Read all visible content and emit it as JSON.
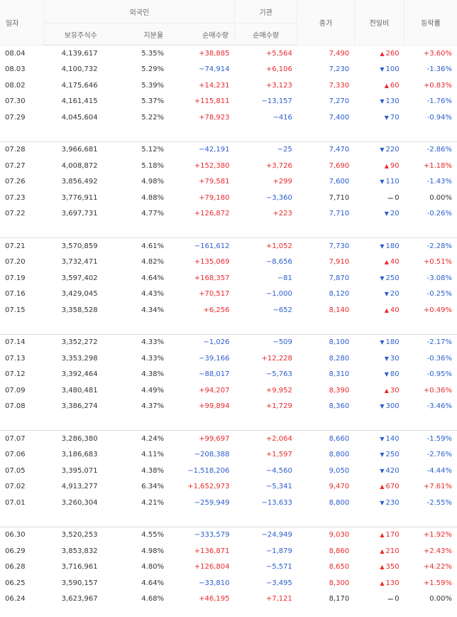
{
  "headers": {
    "date": "일자",
    "foreign": "외국인",
    "institution": "기관",
    "holdings": "보유주식수",
    "ratio": "지분율",
    "foreign_net": "순매수량",
    "inst_net": "순매수량",
    "close": "종가",
    "change": "전일비",
    "rate": "등락률"
  },
  "groups": [
    [
      {
        "date": "08.04",
        "holdings": "4,139,617",
        "ratio": "5.35%",
        "fnet": "+38,885",
        "inet": "+5,564",
        "close": "7,490",
        "dir": "up",
        "change": "260",
        "rate": "+3.60%"
      },
      {
        "date": "08.03",
        "holdings": "4,100,732",
        "ratio": "5.29%",
        "fnet": "−74,914",
        "inet": "+6,106",
        "close": "7,230",
        "dir": "down",
        "change": "100",
        "rate": "-1.36%"
      },
      {
        "date": "08.02",
        "holdings": "4,175,646",
        "ratio": "5.39%",
        "fnet": "+14,231",
        "inet": "+3,123",
        "close": "7,330",
        "dir": "up",
        "change": "60",
        "rate": "+0.83%"
      },
      {
        "date": "07.30",
        "holdings": "4,161,415",
        "ratio": "5.37%",
        "fnet": "+115,811",
        "inet": "−13,157",
        "close": "7,270",
        "dir": "down",
        "change": "130",
        "rate": "-1.76%"
      },
      {
        "date": "07.29",
        "holdings": "4,045,604",
        "ratio": "5.22%",
        "fnet": "+78,923",
        "inet": "−416",
        "close": "7,400",
        "dir": "down",
        "change": "70",
        "rate": "-0.94%"
      }
    ],
    [
      {
        "date": "07.28",
        "holdings": "3,966,681",
        "ratio": "5.12%",
        "fnet": "−42,191",
        "inet": "−25",
        "close": "7,470",
        "dir": "down",
        "change": "220",
        "rate": "-2.86%"
      },
      {
        "date": "07.27",
        "holdings": "4,008,872",
        "ratio": "5.18%",
        "fnet": "+152,380",
        "inet": "+3,726",
        "close": "7,690",
        "dir": "up",
        "change": "90",
        "rate": "+1.18%"
      },
      {
        "date": "07.26",
        "holdings": "3,856,492",
        "ratio": "4.98%",
        "fnet": "+79,581",
        "inet": "+299",
        "close": "7,600",
        "dir": "down",
        "change": "110",
        "rate": "-1.43%"
      },
      {
        "date": "07.23",
        "holdings": "3,776,911",
        "ratio": "4.88%",
        "fnet": "+79,180",
        "inet": "−3,360",
        "close": "7,710",
        "dir": "flat",
        "change": "0",
        "rate": "0.00%"
      },
      {
        "date": "07.22",
        "holdings": "3,697,731",
        "ratio": "4.77%",
        "fnet": "+126,872",
        "inet": "+223",
        "close": "7,710",
        "dir": "down",
        "change": "20",
        "rate": "-0.26%"
      }
    ],
    [
      {
        "date": "07.21",
        "holdings": "3,570,859",
        "ratio": "4.61%",
        "fnet": "−161,612",
        "inet": "+1,052",
        "close": "7,730",
        "dir": "down",
        "change": "180",
        "rate": "-2.28%"
      },
      {
        "date": "07.20",
        "holdings": "3,732,471",
        "ratio": "4.82%",
        "fnet": "+135,069",
        "inet": "−8,656",
        "close": "7,910",
        "dir": "up",
        "change": "40",
        "rate": "+0.51%"
      },
      {
        "date": "07.19",
        "holdings": "3,597,402",
        "ratio": "4.64%",
        "fnet": "+168,357",
        "inet": "−81",
        "close": "7,870",
        "dir": "down",
        "change": "250",
        "rate": "-3.08%"
      },
      {
        "date": "07.16",
        "holdings": "3,429,045",
        "ratio": "4.43%",
        "fnet": "+70,517",
        "inet": "−1,000",
        "close": "8,120",
        "dir": "down",
        "change": "20",
        "rate": "-0.25%"
      },
      {
        "date": "07.15",
        "holdings": "3,358,528",
        "ratio": "4.34%",
        "fnet": "+6,256",
        "inet": "−652",
        "close": "8,140",
        "dir": "up",
        "change": "40",
        "rate": "+0.49%"
      }
    ],
    [
      {
        "date": "07.14",
        "holdings": "3,352,272",
        "ratio": "4.33%",
        "fnet": "−1,026",
        "inet": "−509",
        "close": "8,100",
        "dir": "down",
        "change": "180",
        "rate": "-2.17%"
      },
      {
        "date": "07.13",
        "holdings": "3,353,298",
        "ratio": "4.33%",
        "fnet": "−39,166",
        "inet": "+12,228",
        "close": "8,280",
        "dir": "down",
        "change": "30",
        "rate": "-0.36%"
      },
      {
        "date": "07.12",
        "holdings": "3,392,464",
        "ratio": "4.38%",
        "fnet": "−88,017",
        "inet": "−5,763",
        "close": "8,310",
        "dir": "down",
        "change": "80",
        "rate": "-0.95%"
      },
      {
        "date": "07.09",
        "holdings": "3,480,481",
        "ratio": "4.49%",
        "fnet": "+94,207",
        "inet": "+9,952",
        "close": "8,390",
        "dir": "up",
        "change": "30",
        "rate": "+0.36%"
      },
      {
        "date": "07.08",
        "holdings": "3,386,274",
        "ratio": "4.37%",
        "fnet": "+99,894",
        "inet": "+1,729",
        "close": "8,360",
        "dir": "down",
        "change": "300",
        "rate": "-3.46%"
      }
    ],
    [
      {
        "date": "07.07",
        "holdings": "3,286,380",
        "ratio": "4.24%",
        "fnet": "+99,697",
        "inet": "+2,064",
        "close": "8,660",
        "dir": "down",
        "change": "140",
        "rate": "-1.59%"
      },
      {
        "date": "07.06",
        "holdings": "3,186,683",
        "ratio": "4.11%",
        "fnet": "−208,388",
        "inet": "+1,597",
        "close": "8,800",
        "dir": "down",
        "change": "250",
        "rate": "-2.76%"
      },
      {
        "date": "07.05",
        "holdings": "3,395,071",
        "ratio": "4.38%",
        "fnet": "−1,518,206",
        "inet": "−4,560",
        "close": "9,050",
        "dir": "down",
        "change": "420",
        "rate": "-4.44%"
      },
      {
        "date": "07.02",
        "holdings": "4,913,277",
        "ratio": "6.34%",
        "fnet": "+1,652,973",
        "inet": "−5,341",
        "close": "9,470",
        "dir": "up",
        "change": "670",
        "rate": "+7.61%"
      },
      {
        "date": "07.01",
        "holdings": "3,260,304",
        "ratio": "4.21%",
        "fnet": "−259,949",
        "inet": "−13,633",
        "close": "8,800",
        "dir": "down",
        "change": "230",
        "rate": "-2.55%"
      }
    ],
    [
      {
        "date": "06.30",
        "holdings": "3,520,253",
        "ratio": "4.55%",
        "fnet": "−333,579",
        "inet": "−24,949",
        "close": "9,030",
        "dir": "up",
        "change": "170",
        "rate": "+1.92%"
      },
      {
        "date": "06.29",
        "holdings": "3,853,832",
        "ratio": "4.98%",
        "fnet": "+136,871",
        "inet": "−1,879",
        "close": "8,860",
        "dir": "up",
        "change": "210",
        "rate": "+2.43%"
      },
      {
        "date": "06.28",
        "holdings": "3,716,961",
        "ratio": "4.80%",
        "fnet": "+126,804",
        "inet": "−5,571",
        "close": "8,650",
        "dir": "up",
        "change": "350",
        "rate": "+4.22%"
      },
      {
        "date": "06.25",
        "holdings": "3,590,157",
        "ratio": "4.64%",
        "fnet": "−33,810",
        "inet": "−3,495",
        "close": "8,300",
        "dir": "up",
        "change": "130",
        "rate": "+1.59%"
      },
      {
        "date": "06.24",
        "holdings": "3,623,967",
        "ratio": "4.68%",
        "fnet": "+46,195",
        "inet": "+7,121",
        "close": "8,170",
        "dir": "flat",
        "change": "0",
        "rate": "0.00%"
      }
    ]
  ],
  "colors": {
    "up": "#e8292d",
    "down": "#2a5dcc",
    "flat": "#333333"
  }
}
